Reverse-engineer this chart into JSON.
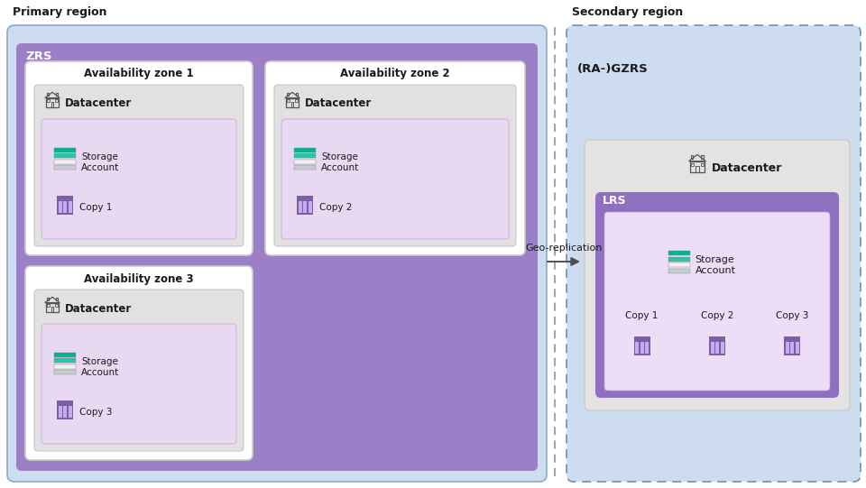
{
  "primary_region_label": "Primary region",
  "secondary_region_label": "Secondary region",
  "zrs_label": "ZRS",
  "ra_gzrs_label": "(RA-)GZRS",
  "lrs_label": "LRS",
  "datacenter_label": "Datacenter",
  "geo_replication_label": "Geo-replication",
  "availability_zones": [
    "Availability zone 1",
    "Availability zone 2",
    "Availability zone 3"
  ],
  "copies_secondary": [
    "Copy 1",
    "Copy 2",
    "Copy 3"
  ],
  "colors": {
    "bg_primary": "#cddcef",
    "bg_secondary": "#cddcef",
    "zrs_box": "#9b80c8",
    "avail_zone_box": "#ffffff",
    "datacenter_box": "#e2e0e0",
    "storage_inner_box": "#e8d8f2",
    "lrs_box_top": "#8f6fc0",
    "lrs_box_bottom": "#a080cc",
    "lrs_inner_box": "#eeddf7",
    "storage_teal_1": "#00b294",
    "storage_teal_2": "#2bc4aa",
    "storage_white": "#f0f0f0",
    "storage_gray": "#c8cdd2",
    "copy_purple_dark": "#7b5ea7",
    "copy_purple_light": "#c8aaee",
    "arrow_color": "#505050",
    "text_color": "#1a1a1a",
    "dashed_border_color": "#7090b0",
    "region_border": "#8aaacf"
  },
  "figsize": [
    9.6,
    5.41
  ],
  "dpi": 100
}
